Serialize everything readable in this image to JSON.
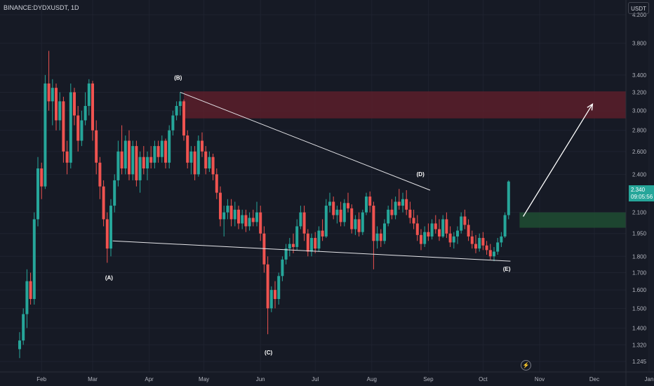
{
  "symbol": "BINANCE:DYDXUSDT, 1D",
  "currency": "USDT",
  "last_price": "2.340",
  "countdown": "09:05:56",
  "colors": {
    "up": "#26a69a",
    "down": "#ef5350",
    "background": "#161a25",
    "resistance_zone": "#5a1f2a",
    "support_zone": "#1e4a32"
  },
  "chart_data": {
    "type": "candlestick",
    "x_ticks": [
      "Feb",
      "Mar",
      "Apr",
      "May",
      "Jun",
      "Jul",
      "Aug",
      "Sep",
      "Oct",
      "Nov",
      "Dec",
      "Jan"
    ],
    "y_ticks": [
      "4.200",
      "3.800",
      "3.400",
      "3.200",
      "3.000",
      "2.800",
      "2.600",
      "2.400",
      "2.100",
      "1.950",
      "1.800",
      "1.700",
      "1.600",
      "1.500",
      "1.400",
      "1.320",
      "1.245"
    ],
    "scale": "log",
    "ylim": [
      1.23,
      4.6
    ],
    "wave_labels": [
      {
        "label": "(A)",
        "date": "Mar 10",
        "price": 1.75
      },
      {
        "label": "(B)",
        "date": "Apr 18",
        "price": 3.2
      },
      {
        "label": "(C)",
        "date": "Jun 5",
        "price": 1.36
      },
      {
        "label": "(D)",
        "date": "Aug 30",
        "price": 2.27
      },
      {
        "label": "(E)",
        "date": "Oct 14",
        "price": 1.78
      }
    ],
    "trendlines": [
      {
        "from": {
          "date": "Apr 18",
          "price": 3.2
        },
        "to": {
          "date": "Sep 2",
          "price": 2.27
        }
      },
      {
        "from": {
          "date": "Mar 12",
          "price": 1.9
        },
        "to": {
          "date": "Oct 16",
          "price": 1.77
        }
      }
    ],
    "resistance_zone": {
      "from_date": "Apr 20",
      "top": 3.21,
      "bottom": 2.92
    },
    "support_zone": {
      "from_date": "Oct 21",
      "top": 2.1,
      "bottom": 1.99
    },
    "projection_arrow": {
      "from": {
        "date": "Oct 23",
        "price": 2.07
      },
      "to": {
        "date": "Nov 30",
        "price": 3.07
      }
    },
    "candles": [
      {
        "date": "Jan 20",
        "o": 1.3,
        "h": 1.38,
        "l": 1.26,
        "c": 1.34
      },
      {
        "date": "Jan 22",
        "o": 1.34,
        "h": 1.5,
        "l": 1.32,
        "c": 1.47
      },
      {
        "date": "Jan 24",
        "o": 1.47,
        "h": 1.72,
        "l": 1.4,
        "c": 1.65
      },
      {
        "date": "Jan 26",
        "o": 1.65,
        "h": 1.7,
        "l": 1.52,
        "c": 1.55
      },
      {
        "date": "Jan 28",
        "o": 1.55,
        "h": 2.1,
        "l": 1.52,
        "c": 2.05
      },
      {
        "date": "Jan 30",
        "o": 2.05,
        "h": 2.55,
        "l": 2.0,
        "c": 2.45
      },
      {
        "date": "Feb 1",
        "o": 2.45,
        "h": 2.5,
        "l": 2.2,
        "c": 2.3
      },
      {
        "date": "Feb 3",
        "o": 2.3,
        "h": 3.4,
        "l": 2.28,
        "c": 3.3
      },
      {
        "date": "Feb 5",
        "o": 3.3,
        "h": 3.7,
        "l": 3.0,
        "c": 3.1
      },
      {
        "date": "Feb 7",
        "o": 3.1,
        "h": 3.35,
        "l": 2.85,
        "c": 3.25
      },
      {
        "date": "Feb 9",
        "o": 3.25,
        "h": 3.3,
        "l": 2.8,
        "c": 2.9
      },
      {
        "date": "Feb 11",
        "o": 2.9,
        "h": 3.2,
        "l": 2.8,
        "c": 3.1
      },
      {
        "date": "Feb 13",
        "o": 3.1,
        "h": 3.15,
        "l": 2.5,
        "c": 2.6
      },
      {
        "date": "Feb 15",
        "o": 2.6,
        "h": 2.7,
        "l": 2.4,
        "c": 2.5
      },
      {
        "date": "Feb 17",
        "o": 2.5,
        "h": 3.3,
        "l": 2.45,
        "c": 3.2
      },
      {
        "date": "Feb 19",
        "o": 3.2,
        "h": 3.25,
        "l": 2.85,
        "c": 2.95
      },
      {
        "date": "Feb 21",
        "o": 2.95,
        "h": 3.05,
        "l": 2.6,
        "c": 2.7
      },
      {
        "date": "Feb 23",
        "o": 2.7,
        "h": 3.0,
        "l": 2.65,
        "c": 2.9
      },
      {
        "date": "Feb 25",
        "o": 2.9,
        "h": 3.2,
        "l": 2.85,
        "c": 3.05
      },
      {
        "date": "Feb 27",
        "o": 3.05,
        "h": 3.35,
        "l": 2.95,
        "c": 3.3
      },
      {
        "date": "Mar 1",
        "o": 3.3,
        "h": 3.33,
        "l": 2.7,
        "c": 2.8
      },
      {
        "date": "Mar 3",
        "o": 2.8,
        "h": 2.9,
        "l": 2.4,
        "c": 2.5
      },
      {
        "date": "Mar 5",
        "o": 2.5,
        "h": 2.55,
        "l": 2.2,
        "c": 2.3
      },
      {
        "date": "Mar 7",
        "o": 2.3,
        "h": 2.35,
        "l": 2.0,
        "c": 2.05
      },
      {
        "date": "Mar 9",
        "o": 2.05,
        "h": 2.1,
        "l": 1.76,
        "c": 1.85
      },
      {
        "date": "Mar 11",
        "o": 1.85,
        "h": 2.2,
        "l": 1.8,
        "c": 2.15
      },
      {
        "date": "Mar 13",
        "o": 2.15,
        "h": 2.4,
        "l": 2.1,
        "c": 2.35
      },
      {
        "date": "Mar 15",
        "o": 2.35,
        "h": 2.7,
        "l": 2.3,
        "c": 2.6
      },
      {
        "date": "Mar 17",
        "o": 2.6,
        "h": 2.85,
        "l": 2.4,
        "c": 2.45
      },
      {
        "date": "Mar 19",
        "o": 2.45,
        "h": 2.75,
        "l": 2.4,
        "c": 2.7
      },
      {
        "date": "Mar 21",
        "o": 2.7,
        "h": 2.8,
        "l": 2.35,
        "c": 2.4
      },
      {
        "date": "Mar 23",
        "o": 2.4,
        "h": 2.7,
        "l": 2.35,
        "c": 2.65
      },
      {
        "date": "Mar 25",
        "o": 2.65,
        "h": 2.7,
        "l": 2.3,
        "c": 2.35
      },
      {
        "date": "Mar 27",
        "o": 2.35,
        "h": 2.6,
        "l": 2.25,
        "c": 2.55
      },
      {
        "date": "Mar 29",
        "o": 2.55,
        "h": 2.65,
        "l": 2.4,
        "c": 2.45
      },
      {
        "date": "Mar 31",
        "o": 2.45,
        "h": 2.6,
        "l": 2.35,
        "c": 2.55
      },
      {
        "date": "Apr 2",
        "o": 2.55,
        "h": 2.65,
        "l": 2.45,
        "c": 2.5
      },
      {
        "date": "Apr 4",
        "o": 2.5,
        "h": 2.7,
        "l": 2.45,
        "c": 2.65
      },
      {
        "date": "Apr 6",
        "o": 2.65,
        "h": 2.7,
        "l": 2.5,
        "c": 2.55
      },
      {
        "date": "Apr 8",
        "o": 2.55,
        "h": 2.75,
        "l": 2.5,
        "c": 2.7
      },
      {
        "date": "Apr 10",
        "o": 2.7,
        "h": 2.72,
        "l": 2.45,
        "c": 2.5
      },
      {
        "date": "Apr 12",
        "o": 2.5,
        "h": 2.85,
        "l": 2.45,
        "c": 2.8
      },
      {
        "date": "Apr 14",
        "o": 2.8,
        "h": 3.0,
        "l": 2.75,
        "c": 2.95
      },
      {
        "date": "Apr 16",
        "o": 2.95,
        "h": 3.1,
        "l": 2.9,
        "c": 3.05
      },
      {
        "date": "Apr 18",
        "o": 3.05,
        "h": 3.2,
        "l": 2.95,
        "c": 3.1
      },
      {
        "date": "Apr 20",
        "o": 3.1,
        "h": 3.12,
        "l": 2.7,
        "c": 2.75
      },
      {
        "date": "Apr 22",
        "o": 2.75,
        "h": 2.8,
        "l": 2.45,
        "c": 2.5
      },
      {
        "date": "Apr 24",
        "o": 2.5,
        "h": 2.65,
        "l": 2.4,
        "c": 2.6
      },
      {
        "date": "Apr 26",
        "o": 2.6,
        "h": 2.65,
        "l": 2.35,
        "c": 2.4
      },
      {
        "date": "Apr 28",
        "o": 2.4,
        "h": 2.75,
        "l": 2.38,
        "c": 2.7
      },
      {
        "date": "Apr 30",
        "o": 2.7,
        "h": 2.78,
        "l": 2.55,
        "c": 2.6
      },
      {
        "date": "May 2",
        "o": 2.6,
        "h": 2.65,
        "l": 2.4,
        "c": 2.45
      },
      {
        "date": "May 4",
        "o": 2.45,
        "h": 2.6,
        "l": 2.42,
        "c": 2.55
      },
      {
        "date": "May 6",
        "o": 2.55,
        "h": 2.58,
        "l": 2.35,
        "c": 2.4
      },
      {
        "date": "May 8",
        "o": 2.4,
        "h": 2.45,
        "l": 2.2,
        "c": 2.25
      },
      {
        "date": "May 10",
        "o": 2.25,
        "h": 2.3,
        "l": 2.0,
        "c": 2.05
      },
      {
        "date": "May 12",
        "o": 2.05,
        "h": 2.15,
        "l": 1.93,
        "c": 2.1
      },
      {
        "date": "May 14",
        "o": 2.1,
        "h": 2.2,
        "l": 2.05,
        "c": 2.15
      },
      {
        "date": "May 16",
        "o": 2.15,
        "h": 2.2,
        "l": 2.0,
        "c": 2.05
      },
      {
        "date": "May 18",
        "o": 2.05,
        "h": 2.18,
        "l": 2.0,
        "c": 2.12
      },
      {
        "date": "May 20",
        "o": 2.12,
        "h": 2.15,
        "l": 1.98,
        "c": 2.02
      },
      {
        "date": "May 22",
        "o": 2.02,
        "h": 2.12,
        "l": 1.98,
        "c": 2.08
      },
      {
        "date": "May 24",
        "o": 2.08,
        "h": 2.12,
        "l": 1.96,
        "c": 2.0
      },
      {
        "date": "May 26",
        "o": 2.0,
        "h": 2.1,
        "l": 1.97,
        "c": 2.06
      },
      {
        "date": "May 28",
        "o": 2.06,
        "h": 2.12,
        "l": 2.0,
        "c": 2.03
      },
      {
        "date": "May 30",
        "o": 2.03,
        "h": 2.18,
        "l": 2.0,
        "c": 2.1
      },
      {
        "date": "Jun 1",
        "o": 2.1,
        "h": 2.15,
        "l": 1.9,
        "c": 1.95
      },
      {
        "date": "Jun 3",
        "o": 1.95,
        "h": 2.0,
        "l": 1.7,
        "c": 1.75
      },
      {
        "date": "Jun 5",
        "o": 1.75,
        "h": 1.8,
        "l": 1.37,
        "c": 1.5
      },
      {
        "date": "Jun 7",
        "o": 1.5,
        "h": 1.62,
        "l": 1.48,
        "c": 1.6
      },
      {
        "date": "Jun 9",
        "o": 1.6,
        "h": 1.65,
        "l": 1.5,
        "c": 1.55
      },
      {
        "date": "Jun 11",
        "o": 1.55,
        "h": 1.7,
        "l": 1.52,
        "c": 1.68
      },
      {
        "date": "Jun 13",
        "o": 1.68,
        "h": 1.8,
        "l": 1.65,
        "c": 1.78
      },
      {
        "date": "Jun 15",
        "o": 1.78,
        "h": 1.88,
        "l": 1.75,
        "c": 1.85
      },
      {
        "date": "Jun 17",
        "o": 1.85,
        "h": 1.92,
        "l": 1.8,
        "c": 1.88
      },
      {
        "date": "Jun 19",
        "o": 1.88,
        "h": 1.95,
        "l": 1.82,
        "c": 1.86
      },
      {
        "date": "Jun 21",
        "o": 1.86,
        "h": 2.05,
        "l": 1.84,
        "c": 2.0
      },
      {
        "date": "Jun 23",
        "o": 2.0,
        "h": 2.15,
        "l": 1.98,
        "c": 2.1
      },
      {
        "date": "Jun 25",
        "o": 2.1,
        "h": 2.15,
        "l": 1.9,
        "c": 1.95
      },
      {
        "date": "Jun 27",
        "o": 1.95,
        "h": 1.98,
        "l": 1.8,
        "c": 1.83
      },
      {
        "date": "Jun 29",
        "o": 1.83,
        "h": 1.95,
        "l": 1.8,
        "c": 1.92
      },
      {
        "date": "Jul 1",
        "o": 1.92,
        "h": 1.96,
        "l": 1.82,
        "c": 1.85
      },
      {
        "date": "Jul 3",
        "o": 1.85,
        "h": 2.0,
        "l": 1.83,
        "c": 1.97
      },
      {
        "date": "Jul 5",
        "o": 1.97,
        "h": 2.05,
        "l": 1.9,
        "c": 1.93
      },
      {
        "date": "Jul 7",
        "o": 1.93,
        "h": 2.2,
        "l": 1.92,
        "c": 2.15
      },
      {
        "date": "Jul 9",
        "o": 2.15,
        "h": 2.25,
        "l": 2.1,
        "c": 2.18
      },
      {
        "date": "Jul 11",
        "o": 2.18,
        "h": 2.22,
        "l": 2.05,
        "c": 2.08
      },
      {
        "date": "Jul 13",
        "o": 2.08,
        "h": 2.15,
        "l": 2.02,
        "c": 2.12
      },
      {
        "date": "Jul 15",
        "o": 2.12,
        "h": 2.18,
        "l": 2.0,
        "c": 2.03
      },
      {
        "date": "Jul 17",
        "o": 2.03,
        "h": 2.2,
        "l": 2.0,
        "c": 2.17
      },
      {
        "date": "Jul 19",
        "o": 2.17,
        "h": 2.25,
        "l": 2.1,
        "c": 2.13
      },
      {
        "date": "Jul 21",
        "o": 2.13,
        "h": 2.16,
        "l": 1.95,
        "c": 1.98
      },
      {
        "date": "Jul 23",
        "o": 1.98,
        "h": 2.08,
        "l": 1.94,
        "c": 2.05
      },
      {
        "date": "Jul 25",
        "o": 2.05,
        "h": 2.1,
        "l": 1.93,
        "c": 1.96
      },
      {
        "date": "Jul 27",
        "o": 1.96,
        "h": 2.12,
        "l": 1.94,
        "c": 2.1
      },
      {
        "date": "Jul 29",
        "o": 2.1,
        "h": 2.25,
        "l": 2.08,
        "c": 2.22
      },
      {
        "date": "Jul 31",
        "o": 2.22,
        "h": 2.26,
        "l": 2.1,
        "c": 2.15
      },
      {
        "date": "Aug 2",
        "o": 2.15,
        "h": 2.18,
        "l": 1.72,
        "c": 1.9
      },
      {
        "date": "Aug 4",
        "o": 1.9,
        "h": 2.0,
        "l": 1.85,
        "c": 1.95
      },
      {
        "date": "Aug 6",
        "o": 1.95,
        "h": 1.98,
        "l": 1.86,
        "c": 1.9
      },
      {
        "date": "Aug 8",
        "o": 1.9,
        "h": 2.05,
        "l": 1.88,
        "c": 2.02
      },
      {
        "date": "Aug 10",
        "o": 2.02,
        "h": 2.15,
        "l": 2.0,
        "c": 2.12
      },
      {
        "date": "Aug 12",
        "o": 2.12,
        "h": 2.2,
        "l": 2.05,
        "c": 2.08
      },
      {
        "date": "Aug 14",
        "o": 2.08,
        "h": 2.22,
        "l": 2.05,
        "c": 2.18
      },
      {
        "date": "Aug 16",
        "o": 2.18,
        "h": 2.28,
        "l": 2.12,
        "c": 2.15
      },
      {
        "date": "Aug 18",
        "o": 2.15,
        "h": 2.25,
        "l": 2.1,
        "c": 2.2
      },
      {
        "date": "Aug 20",
        "o": 2.2,
        "h": 2.27,
        "l": 2.08,
        "c": 2.12
      },
      {
        "date": "Aug 22",
        "o": 2.12,
        "h": 2.18,
        "l": 2.02,
        "c": 2.06
      },
      {
        "date": "Aug 24",
        "o": 2.06,
        "h": 2.12,
        "l": 1.98,
        "c": 2.02
      },
      {
        "date": "Aug 26",
        "o": 2.02,
        "h": 2.08,
        "l": 1.9,
        "c": 1.94
      },
      {
        "date": "Aug 28",
        "o": 1.94,
        "h": 1.98,
        "l": 1.84,
        "c": 1.88
      },
      {
        "date": "Aug 30",
        "o": 1.88,
        "h": 2.0,
        "l": 1.86,
        "c": 1.96
      },
      {
        "date": "Sep 1",
        "o": 1.96,
        "h": 2.02,
        "l": 1.9,
        "c": 1.93
      },
      {
        "date": "Sep 3",
        "o": 1.93,
        "h": 2.05,
        "l": 1.91,
        "c": 2.02
      },
      {
        "date": "Sep 5",
        "o": 2.02,
        "h": 2.08,
        "l": 1.95,
        "c": 1.98
      },
      {
        "date": "Sep 7",
        "o": 1.98,
        "h": 2.05,
        "l": 1.9,
        "c": 1.93
      },
      {
        "date": "Sep 9",
        "o": 1.93,
        "h": 2.08,
        "l": 1.92,
        "c": 2.05
      },
      {
        "date": "Sep 11",
        "o": 2.05,
        "h": 2.1,
        "l": 1.92,
        "c": 1.95
      },
      {
        "date": "Sep 13",
        "o": 1.95,
        "h": 2.0,
        "l": 1.86,
        "c": 1.89
      },
      {
        "date": "Sep 15",
        "o": 1.89,
        "h": 1.96,
        "l": 1.85,
        "c": 1.93
      },
      {
        "date": "Sep 17",
        "o": 1.93,
        "h": 2.0,
        "l": 1.88,
        "c": 1.97
      },
      {
        "date": "Sep 19",
        "o": 1.97,
        "h": 2.1,
        "l": 1.95,
        "c": 2.07
      },
      {
        "date": "Sep 21",
        "o": 2.07,
        "h": 2.12,
        "l": 1.98,
        "c": 2.01
      },
      {
        "date": "Sep 23",
        "o": 2.01,
        "h": 2.05,
        "l": 1.9,
        "c": 1.93
      },
      {
        "date": "Sep 25",
        "o": 1.93,
        "h": 1.97,
        "l": 1.85,
        "c": 1.88
      },
      {
        "date": "Sep 27",
        "o": 1.88,
        "h": 1.94,
        "l": 1.82,
        "c": 1.85
      },
      {
        "date": "Sep 29",
        "o": 1.85,
        "h": 1.95,
        "l": 1.83,
        "c": 1.92
      },
      {
        "date": "Oct 1",
        "o": 1.92,
        "h": 1.96,
        "l": 1.84,
        "c": 1.87
      },
      {
        "date": "Oct 3",
        "o": 1.87,
        "h": 1.9,
        "l": 1.81,
        "c": 1.84
      },
      {
        "date": "Oct 5",
        "o": 1.84,
        "h": 1.88,
        "l": 1.78,
        "c": 1.8
      },
      {
        "date": "Oct 7",
        "o": 1.8,
        "h": 1.86,
        "l": 1.77,
        "c": 1.83
      },
      {
        "date": "Oct 9",
        "o": 1.83,
        "h": 1.92,
        "l": 1.81,
        "c": 1.89
      },
      {
        "date": "Oct 11",
        "o": 1.89,
        "h": 1.96,
        "l": 1.86,
        "c": 1.93
      },
      {
        "date": "Oct 13",
        "o": 1.93,
        "h": 2.1,
        "l": 1.92,
        "c": 2.08
      },
      {
        "date": "Oct 15",
        "o": 2.08,
        "h": 2.35,
        "l": 2.05,
        "c": 2.34
      }
    ]
  }
}
